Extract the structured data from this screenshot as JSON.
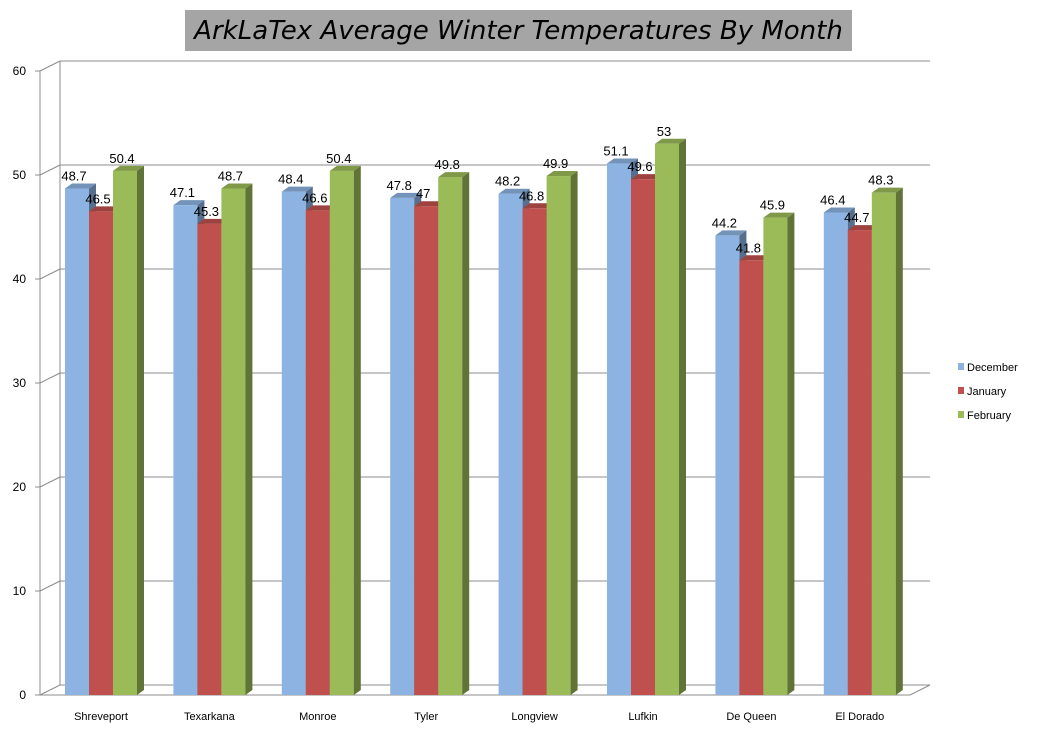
{
  "chart_data": {
    "type": "bar",
    "title": "ArkLaTex Average Winter Temperatures By Month",
    "xlabel": "",
    "ylabel": "",
    "ylim": [
      0,
      60
    ],
    "yticks": [
      0,
      10,
      20,
      30,
      40,
      50,
      60
    ],
    "grid": true,
    "legend": "right",
    "style": "3d-clustered-column",
    "categories": [
      "Shreveport",
      "Texarkana",
      "Monroe",
      "Tyler",
      "Longview",
      "Lufkin",
      "De Queen",
      "El Dorado"
    ],
    "series": [
      {
        "name": "December",
        "color": "#8db3e2",
        "values": [
          48.7,
          47.1,
          48.4,
          47.8,
          48.2,
          51.1,
          44.2,
          46.4
        ]
      },
      {
        "name": "January",
        "color": "#c0504d",
        "values": [
          46.5,
          45.3,
          46.6,
          47,
          46.8,
          49.6,
          41.8,
          44.7
        ]
      },
      {
        "name": "February",
        "color": "#9bbb59",
        "values": [
          50.4,
          48.7,
          50.4,
          49.8,
          49.9,
          53,
          45.9,
          48.3
        ]
      }
    ]
  }
}
